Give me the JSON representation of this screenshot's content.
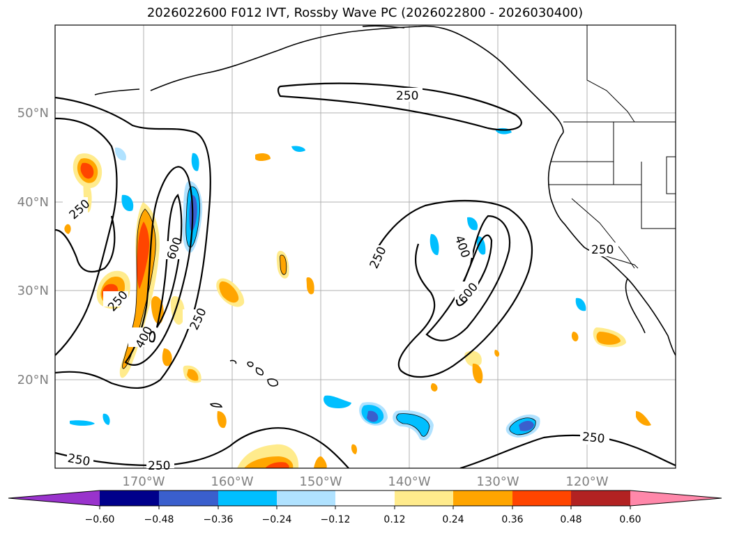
{
  "title": "2026022600 F012 IVT, Rossby Wave PC (2026022800 - 2026030400)",
  "lat_labels": [
    "50°N",
    "40°N",
    "30°N",
    "20°N"
  ],
  "lon_labels": [
    "170°W",
    "160°W",
    "150°W",
    "140°W",
    "130°W",
    "120°W"
  ],
  "contour_labels": {
    "west": [
      "250",
      "250",
      "600",
      "250",
      "400",
      "250",
      "250"
    ],
    "east": [
      "250",
      "250",
      "400",
      "600",
      "250",
      "250"
    ]
  },
  "colorbar": {
    "ticks": [
      "−0.60",
      "−0.48",
      "−0.36",
      "−0.24",
      "−0.12",
      "0.12",
      "0.24",
      "0.36",
      "0.48",
      "0.60"
    ],
    "colors": [
      "#9933cc",
      "#00008b",
      "#3a5fcd",
      "#00bfff",
      "#b0e2ff",
      "#ffffff",
      "#ffeb8c",
      "#ffa500",
      "#ff4500",
      "#b22222",
      "#ff88aa"
    ]
  }
}
